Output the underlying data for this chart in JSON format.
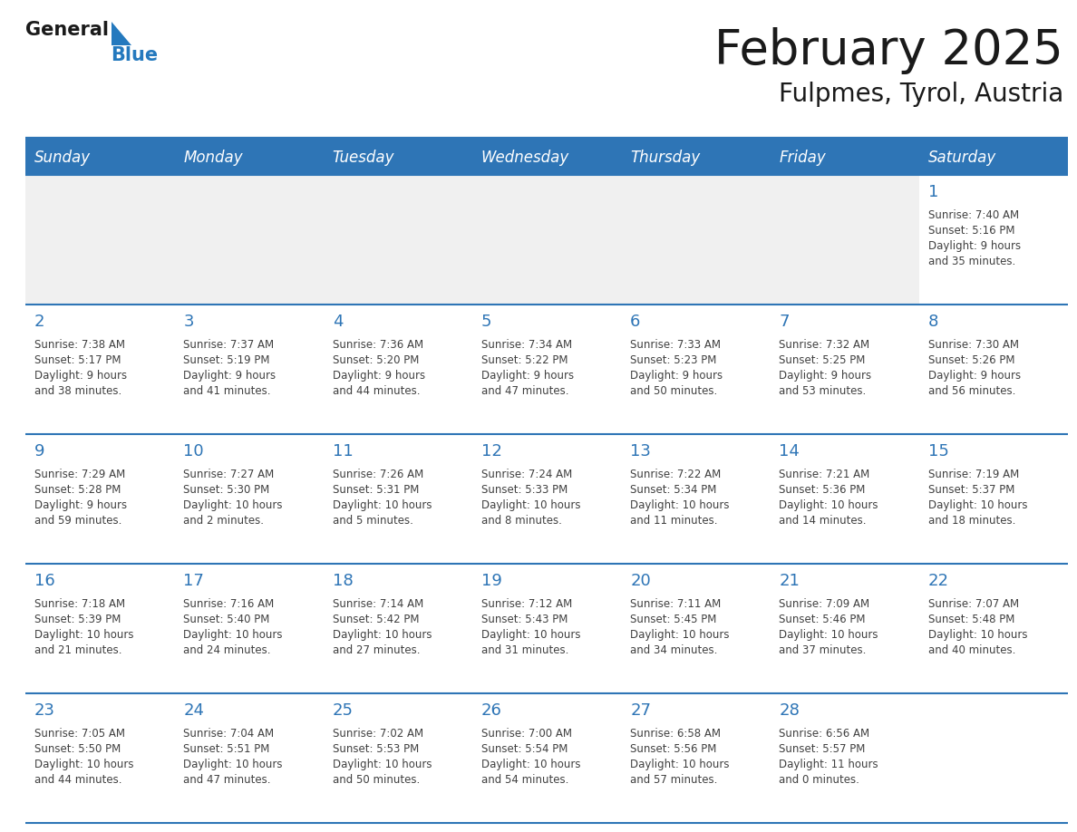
{
  "title": "February 2025",
  "subtitle": "Fulpmes, Tyrol, Austria",
  "days_of_week": [
    "Sunday",
    "Monday",
    "Tuesday",
    "Wednesday",
    "Thursday",
    "Friday",
    "Saturday"
  ],
  "header_bg": "#2E75B6",
  "header_text": "#FFFFFF",
  "row_bg_light": "#FFFFFF",
  "row_bg_gray": "#F0F0F0",
  "separator_color": "#2E75B6",
  "day_number_color": "#2E75B6",
  "cell_text_color": "#404040",
  "title_color": "#1A1A1A",
  "logo_text_color": "#1A1A1A",
  "logo_blue_color": "#2479BE",
  "calendar_data": [
    [
      {
        "day": null,
        "info": null
      },
      {
        "day": null,
        "info": null
      },
      {
        "day": null,
        "info": null
      },
      {
        "day": null,
        "info": null
      },
      {
        "day": null,
        "info": null
      },
      {
        "day": null,
        "info": null
      },
      {
        "day": 1,
        "info": "Sunrise: 7:40 AM\nSunset: 5:16 PM\nDaylight: 9 hours\nand 35 minutes."
      }
    ],
    [
      {
        "day": 2,
        "info": "Sunrise: 7:38 AM\nSunset: 5:17 PM\nDaylight: 9 hours\nand 38 minutes."
      },
      {
        "day": 3,
        "info": "Sunrise: 7:37 AM\nSunset: 5:19 PM\nDaylight: 9 hours\nand 41 minutes."
      },
      {
        "day": 4,
        "info": "Sunrise: 7:36 AM\nSunset: 5:20 PM\nDaylight: 9 hours\nand 44 minutes."
      },
      {
        "day": 5,
        "info": "Sunrise: 7:34 AM\nSunset: 5:22 PM\nDaylight: 9 hours\nand 47 minutes."
      },
      {
        "day": 6,
        "info": "Sunrise: 7:33 AM\nSunset: 5:23 PM\nDaylight: 9 hours\nand 50 minutes."
      },
      {
        "day": 7,
        "info": "Sunrise: 7:32 AM\nSunset: 5:25 PM\nDaylight: 9 hours\nand 53 minutes."
      },
      {
        "day": 8,
        "info": "Sunrise: 7:30 AM\nSunset: 5:26 PM\nDaylight: 9 hours\nand 56 minutes."
      }
    ],
    [
      {
        "day": 9,
        "info": "Sunrise: 7:29 AM\nSunset: 5:28 PM\nDaylight: 9 hours\nand 59 minutes."
      },
      {
        "day": 10,
        "info": "Sunrise: 7:27 AM\nSunset: 5:30 PM\nDaylight: 10 hours\nand 2 minutes."
      },
      {
        "day": 11,
        "info": "Sunrise: 7:26 AM\nSunset: 5:31 PM\nDaylight: 10 hours\nand 5 minutes."
      },
      {
        "day": 12,
        "info": "Sunrise: 7:24 AM\nSunset: 5:33 PM\nDaylight: 10 hours\nand 8 minutes."
      },
      {
        "day": 13,
        "info": "Sunrise: 7:22 AM\nSunset: 5:34 PM\nDaylight: 10 hours\nand 11 minutes."
      },
      {
        "day": 14,
        "info": "Sunrise: 7:21 AM\nSunset: 5:36 PM\nDaylight: 10 hours\nand 14 minutes."
      },
      {
        "day": 15,
        "info": "Sunrise: 7:19 AM\nSunset: 5:37 PM\nDaylight: 10 hours\nand 18 minutes."
      }
    ],
    [
      {
        "day": 16,
        "info": "Sunrise: 7:18 AM\nSunset: 5:39 PM\nDaylight: 10 hours\nand 21 minutes."
      },
      {
        "day": 17,
        "info": "Sunrise: 7:16 AM\nSunset: 5:40 PM\nDaylight: 10 hours\nand 24 minutes."
      },
      {
        "day": 18,
        "info": "Sunrise: 7:14 AM\nSunset: 5:42 PM\nDaylight: 10 hours\nand 27 minutes."
      },
      {
        "day": 19,
        "info": "Sunrise: 7:12 AM\nSunset: 5:43 PM\nDaylight: 10 hours\nand 31 minutes."
      },
      {
        "day": 20,
        "info": "Sunrise: 7:11 AM\nSunset: 5:45 PM\nDaylight: 10 hours\nand 34 minutes."
      },
      {
        "day": 21,
        "info": "Sunrise: 7:09 AM\nSunset: 5:46 PM\nDaylight: 10 hours\nand 37 minutes."
      },
      {
        "day": 22,
        "info": "Sunrise: 7:07 AM\nSunset: 5:48 PM\nDaylight: 10 hours\nand 40 minutes."
      }
    ],
    [
      {
        "day": 23,
        "info": "Sunrise: 7:05 AM\nSunset: 5:50 PM\nDaylight: 10 hours\nand 44 minutes."
      },
      {
        "day": 24,
        "info": "Sunrise: 7:04 AM\nSunset: 5:51 PM\nDaylight: 10 hours\nand 47 minutes."
      },
      {
        "day": 25,
        "info": "Sunrise: 7:02 AM\nSunset: 5:53 PM\nDaylight: 10 hours\nand 50 minutes."
      },
      {
        "day": 26,
        "info": "Sunrise: 7:00 AM\nSunset: 5:54 PM\nDaylight: 10 hours\nand 54 minutes."
      },
      {
        "day": 27,
        "info": "Sunrise: 6:58 AM\nSunset: 5:56 PM\nDaylight: 10 hours\nand 57 minutes."
      },
      {
        "day": 28,
        "info": "Sunrise: 6:56 AM\nSunset: 5:57 PM\nDaylight: 11 hours\nand 0 minutes."
      },
      {
        "day": null,
        "info": null
      }
    ]
  ]
}
